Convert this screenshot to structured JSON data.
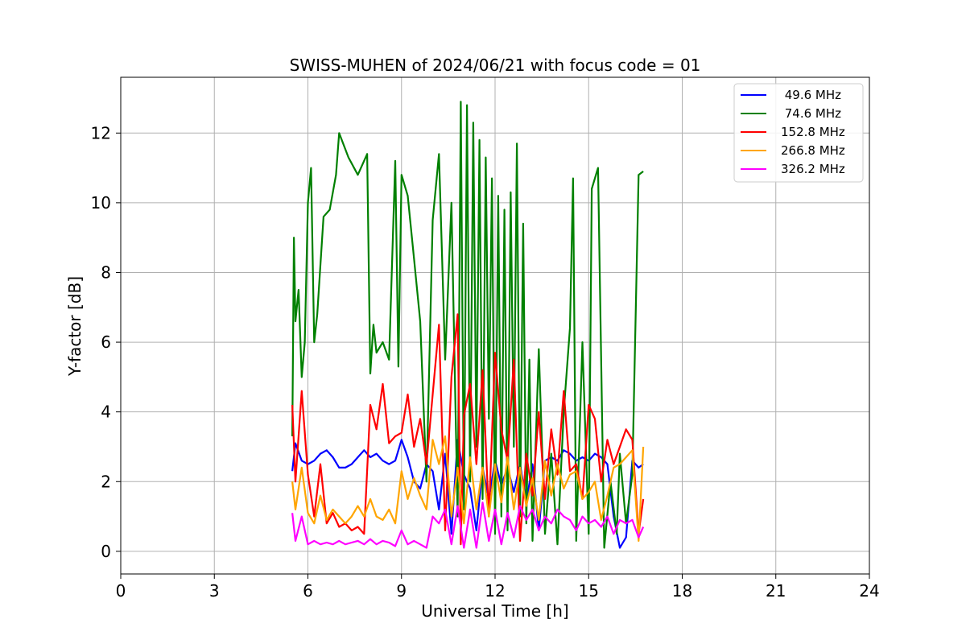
{
  "chart_data": {
    "type": "line",
    "title": "SWISS-MUHEN of 2024/06/21 with focus code = 01",
    "xlabel": "Universal Time [h]",
    "ylabel": "Y-factor [dB]",
    "xlim": [
      0,
      24
    ],
    "ylim": [
      -0.65,
      13.6
    ],
    "xticks": [
      0,
      3,
      6,
      9,
      12,
      15,
      18,
      21,
      24
    ],
    "yticks": [
      0,
      2,
      4,
      6,
      8,
      10,
      12
    ],
    "grid": true,
    "legend_position": "top-right",
    "series": [
      {
        "name": " 49.6 MHz",
        "color": "#0000ff",
        "x": [
          5.5,
          5.6,
          5.8,
          6.0,
          6.2,
          6.4,
          6.6,
          6.8,
          7.0,
          7.2,
          7.4,
          7.6,
          7.8,
          8.0,
          8.2,
          8.4,
          8.6,
          8.8,
          9.0,
          9.2,
          9.4,
          9.6,
          9.8,
          10.0,
          10.2,
          10.4,
          10.6,
          10.8,
          11.0,
          11.2,
          11.4,
          11.6,
          11.8,
          12.0,
          12.2,
          12.4,
          12.6,
          12.8,
          13.0,
          13.2,
          13.4,
          13.6,
          13.8,
          14.0,
          14.2,
          14.4,
          14.6,
          14.8,
          15.0,
          15.2,
          15.4,
          15.6,
          15.8,
          16.0,
          16.2,
          16.4,
          16.6,
          16.75
        ],
        "values": [
          2.3,
          3.1,
          2.6,
          2.5,
          2.6,
          2.8,
          2.9,
          2.7,
          2.4,
          2.4,
          2.5,
          2.7,
          2.9,
          2.7,
          2.8,
          2.6,
          2.5,
          2.6,
          3.2,
          2.7,
          2.0,
          1.8,
          2.5,
          2.3,
          1.2,
          2.8,
          0.5,
          3.2,
          2.2,
          1.8,
          0.6,
          2.4,
          1.5,
          2.6,
          1.9,
          2.4,
          1.7,
          2.5,
          1.4,
          2.5,
          0.6,
          2.6,
          2.7,
          2.6,
          2.9,
          2.8,
          2.6,
          2.7,
          2.6,
          2.8,
          2.7,
          2.5,
          1.0,
          0.1,
          0.4,
          2.6,
          2.4,
          2.5
        ]
      },
      {
        "name": " 74.6 MHz",
        "color": "#008000",
        "x": [
          5.5,
          5.55,
          5.6,
          5.7,
          5.8,
          5.9,
          6.0,
          6.1,
          6.2,
          6.3,
          6.5,
          6.7,
          6.9,
          7.0,
          7.3,
          7.6,
          7.9,
          8.0,
          8.1,
          8.2,
          8.4,
          8.6,
          8.8,
          8.9,
          9.0,
          9.2,
          9.4,
          9.6,
          9.8,
          10.0,
          10.2,
          10.4,
          10.6,
          10.8,
          10.9,
          11.0,
          11.1,
          11.2,
          11.3,
          11.4,
          11.5,
          11.6,
          11.7,
          11.8,
          11.9,
          12.0,
          12.1,
          12.2,
          12.3,
          12.4,
          12.5,
          12.6,
          12.7,
          12.8,
          12.9,
          13.0,
          13.1,
          13.2,
          13.4,
          13.6,
          13.8,
          14.0,
          14.2,
          14.4,
          14.5,
          14.6,
          14.8,
          15.0,
          15.1,
          15.3,
          15.5,
          15.7,
          15.9,
          16.0,
          16.2,
          16.4,
          16.6,
          16.75
        ],
        "values": [
          3.3,
          9.0,
          6.6,
          7.5,
          5.0,
          6.0,
          10.0,
          11.0,
          6.0,
          6.8,
          9.6,
          9.8,
          10.8,
          12.0,
          11.3,
          10.8,
          11.4,
          5.1,
          6.5,
          5.7,
          6.0,
          5.5,
          11.2,
          5.3,
          10.8,
          10.2,
          8.4,
          6.6,
          2.0,
          9.5,
          11.4,
          5.5,
          10.0,
          1.0,
          12.9,
          1.2,
          12.8,
          2.0,
          12.3,
          3.0,
          11.8,
          1.5,
          11.3,
          3.8,
          10.7,
          0.5,
          10.2,
          1.0,
          9.8,
          0.6,
          10.3,
          3.0,
          11.7,
          1.0,
          9.4,
          0.8,
          5.5,
          0.3,
          5.8,
          0.5,
          2.8,
          0.2,
          4.0,
          6.4,
          10.7,
          0.3,
          6.0,
          0.5,
          10.4,
          11.0,
          0.1,
          2.0,
          0.5,
          2.8,
          0.8,
          2.2,
          10.8,
          10.9
        ]
      },
      {
        "name": "152.8 MHz",
        "color": "#ff0000",
        "x": [
          5.5,
          5.6,
          5.8,
          6.0,
          6.2,
          6.4,
          6.6,
          6.8,
          7.0,
          7.2,
          7.4,
          7.6,
          7.8,
          8.0,
          8.2,
          8.4,
          8.6,
          8.8,
          9.0,
          9.2,
          9.4,
          9.6,
          9.8,
          10.0,
          10.2,
          10.4,
          10.6,
          10.8,
          10.9,
          11.0,
          11.2,
          11.4,
          11.6,
          11.8,
          12.0,
          12.2,
          12.4,
          12.6,
          12.8,
          13.0,
          13.2,
          13.4,
          13.6,
          13.8,
          14.0,
          14.2,
          14.4,
          14.6,
          14.8,
          15.0,
          15.2,
          15.4,
          15.6,
          15.8,
          16.0,
          16.2,
          16.4,
          16.6,
          16.75
        ],
        "values": [
          4.2,
          2.0,
          4.6,
          2.2,
          1.0,
          2.5,
          0.8,
          1.1,
          0.7,
          0.8,
          0.6,
          0.7,
          0.5,
          4.2,
          3.5,
          4.8,
          3.1,
          3.3,
          3.4,
          4.5,
          3.0,
          3.8,
          2.5,
          4.5,
          6.5,
          0.6,
          5.0,
          6.8,
          0.2,
          3.9,
          4.8,
          2.5,
          5.2,
          1.0,
          5.7,
          3.5,
          2.6,
          5.5,
          0.3,
          2.8,
          1.6,
          4.0,
          1.5,
          3.5,
          2.2,
          4.6,
          2.3,
          2.5,
          1.5,
          4.2,
          3.8,
          2.0,
          3.2,
          2.5,
          3.0,
          3.5,
          3.2,
          0.5,
          1.5
        ]
      },
      {
        "name": "266.8 MHz",
        "color": "#ffa500",
        "x": [
          5.5,
          5.6,
          5.8,
          6.0,
          6.2,
          6.4,
          6.6,
          6.8,
          7.0,
          7.2,
          7.4,
          7.6,
          7.8,
          8.0,
          8.2,
          8.4,
          8.6,
          8.8,
          9.0,
          9.2,
          9.4,
          9.6,
          9.8,
          10.0,
          10.2,
          10.4,
          10.6,
          10.8,
          11.0,
          11.2,
          11.4,
          11.6,
          11.8,
          12.0,
          12.2,
          12.4,
          12.6,
          12.8,
          13.0,
          13.2,
          13.4,
          13.6,
          13.8,
          14.0,
          14.2,
          14.4,
          14.6,
          14.8,
          15.0,
          15.2,
          15.4,
          15.6,
          15.8,
          16.0,
          16.2,
          16.4,
          16.6,
          16.75
        ],
        "values": [
          2.0,
          1.2,
          2.4,
          1.1,
          0.8,
          1.6,
          0.9,
          1.2,
          1.0,
          0.8,
          1.0,
          1.3,
          1.0,
          1.5,
          1.0,
          0.9,
          1.2,
          0.8,
          2.3,
          1.5,
          2.1,
          1.6,
          1.2,
          3.2,
          2.5,
          3.3,
          1.0,
          2.4,
          0.8,
          2.7,
          1.2,
          2.4,
          1.0,
          2.5,
          1.4,
          2.7,
          1.2,
          2.4,
          1.3,
          2.1,
          0.9,
          2.6,
          1.6,
          2.5,
          1.8,
          2.2,
          2.3,
          1.5,
          1.7,
          2.0,
          0.9,
          1.6,
          2.4,
          2.5,
          2.7,
          2.9,
          0.3,
          3.0
        ]
      },
      {
        "name": "326.2 MHz",
        "color": "#ff00ff",
        "x": [
          5.5,
          5.6,
          5.8,
          6.0,
          6.2,
          6.4,
          6.6,
          6.8,
          7.0,
          7.2,
          7.4,
          7.6,
          7.8,
          8.0,
          8.2,
          8.4,
          8.6,
          8.8,
          9.0,
          9.2,
          9.4,
          9.6,
          9.8,
          10.0,
          10.2,
          10.4,
          10.6,
          10.8,
          11.0,
          11.2,
          11.4,
          11.6,
          11.8,
          12.0,
          12.2,
          12.4,
          12.6,
          12.8,
          13.0,
          13.2,
          13.4,
          13.6,
          13.8,
          14.0,
          14.2,
          14.4,
          14.6,
          14.8,
          15.0,
          15.2,
          15.4,
          15.6,
          15.8,
          16.0,
          16.2,
          16.4,
          16.6,
          16.75
        ],
        "values": [
          1.1,
          0.3,
          1.0,
          0.2,
          0.3,
          0.2,
          0.25,
          0.2,
          0.3,
          0.2,
          0.25,
          0.3,
          0.2,
          0.35,
          0.2,
          0.3,
          0.25,
          0.15,
          0.6,
          0.2,
          0.3,
          0.2,
          0.1,
          1.0,
          0.8,
          1.2,
          0.2,
          1.3,
          0.1,
          1.2,
          0.1,
          1.4,
          0.3,
          1.2,
          0.2,
          1.1,
          0.4,
          1.3,
          0.9,
          1.2,
          0.6,
          1.0,
          0.8,
          1.2,
          1.0,
          0.9,
          0.6,
          1.0,
          0.8,
          0.9,
          0.7,
          1.0,
          0.5,
          0.9,
          0.8,
          0.9,
          0.4,
          0.7
        ]
      }
    ]
  }
}
